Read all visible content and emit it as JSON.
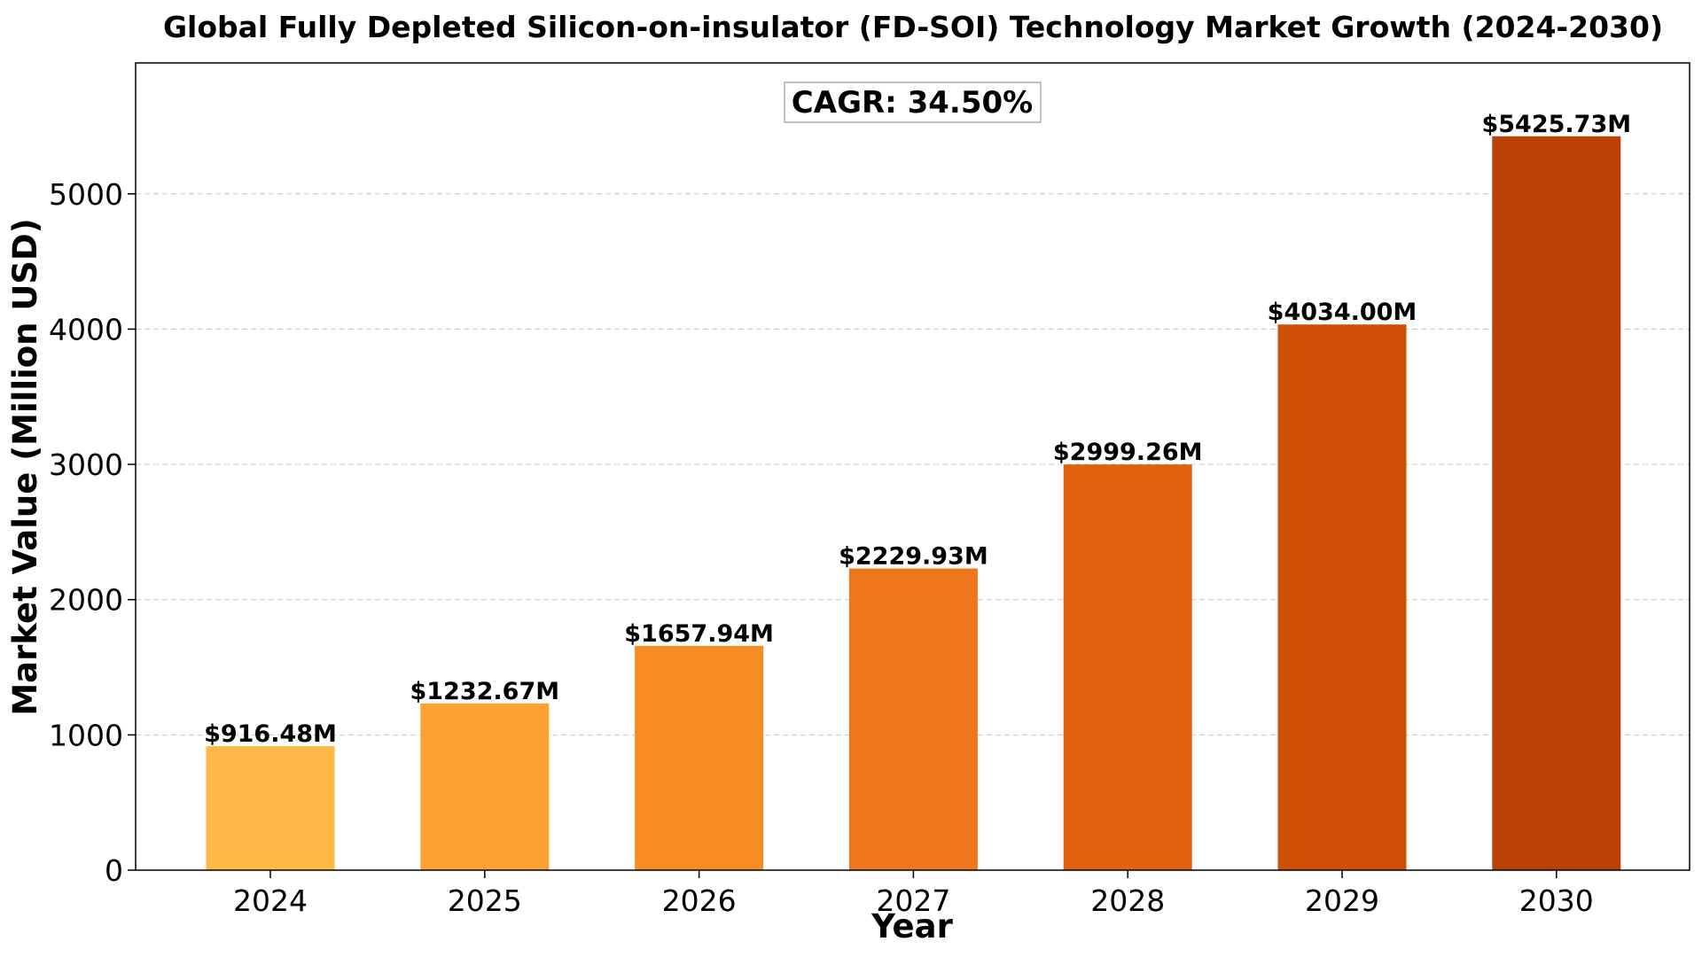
{
  "chart_data": {
    "type": "bar",
    "title": "Global Fully Depleted Silicon-on-insulator (FD-SOI) Technology Market Growth (2024-2030)",
    "xlabel": "Year",
    "ylabel": "Market Value (Million USD)",
    "categories": [
      "2024",
      "2025",
      "2026",
      "2027",
      "2028",
      "2029",
      "2030"
    ],
    "values": [
      916.48,
      1232.67,
      1657.94,
      2229.93,
      2999.26,
      4034.0,
      5425.73
    ],
    "data_labels": [
      "$916.48M",
      "$1232.67M",
      "$1657.94M",
      "$2229.93M",
      "$2999.26M",
      "$4034.00M",
      "$5425.73M"
    ],
    "colors": [
      "#FEB845",
      "#FBA232",
      "#F78D23",
      "#EF761A",
      "#E06210",
      "#CF5004",
      "#B84103"
    ],
    "ylim": [
      0,
      5968
    ],
    "yticks": [
      0,
      1000,
      2000,
      3000,
      4000,
      5000
    ],
    "ytick_labels": [
      "0",
      "1000",
      "2000",
      "3000",
      "4000",
      "5000"
    ],
    "grid": "y-dashed",
    "annotation": "CAGR: 34.50%"
  }
}
